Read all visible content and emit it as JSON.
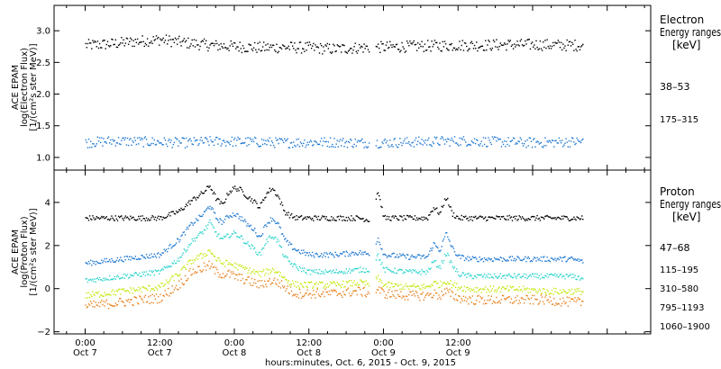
{
  "chart_data": [
    {
      "type": "scatter",
      "panel": "electron",
      "ylabel_lines": [
        "ACE EPAM",
        "log(Electron Flux)",
        "[1/(cm²s ster MeV)]"
      ],
      "ylim": [
        0.8,
        3.4
      ],
      "yticks": [
        1.0,
        1.5,
        2.0,
        2.5,
        3.0
      ],
      "ytick_labels": [
        "1.0",
        "1.5",
        "2.0",
        "2.5",
        "3.0"
      ],
      "legend_title_lines": [
        "Electron",
        "Energy ranges",
        "[keV]"
      ],
      "series": [
        {
          "name": "38–53",
          "color": "#000000",
          "x_hours": [
            0,
            4,
            8,
            12,
            16,
            20,
            24,
            28,
            32,
            36,
            40,
            44,
            48,
            52,
            56,
            60,
            64,
            68,
            72,
            76,
            80
          ],
          "values": [
            2.78,
            2.8,
            2.84,
            2.87,
            2.82,
            2.78,
            2.76,
            2.74,
            2.75,
            2.74,
            2.72,
            2.74,
            2.75,
            2.76,
            2.77,
            2.78,
            2.78,
            2.79,
            2.79,
            2.78,
            2.78
          ],
          "spread": 0.09
        },
        {
          "name": "175–315",
          "color": "#1e78d2",
          "x_hours": [
            0,
            4,
            8,
            12,
            16,
            20,
            24,
            28,
            32,
            36,
            40,
            44,
            48,
            52,
            56,
            60,
            64,
            68,
            72,
            76,
            80
          ],
          "values": [
            1.24,
            1.27,
            1.26,
            1.25,
            1.24,
            1.26,
            1.26,
            1.25,
            1.24,
            1.25,
            1.25,
            1.24,
            1.24,
            1.25,
            1.26,
            1.27,
            1.26,
            1.25,
            1.24,
            1.25,
            1.26
          ],
          "spread": 0.08
        }
      ]
    },
    {
      "type": "scatter",
      "panel": "proton",
      "ylabel_lines": [
        "ACE EPAM",
        "log(Proton Flux)",
        "[1/(cm²s ster MeV)]"
      ],
      "ylim": [
        -2.1,
        5.5
      ],
      "yticks": [
        -2,
        0,
        2,
        4
      ],
      "ytick_labels": [
        "−2",
        "0",
        "2",
        "4"
      ],
      "legend_title_lines": [
        "Proton",
        "Energy ranges",
        "[keV]"
      ],
      "xlabel": "hours:minutes, Oct.  6, 2015 - Oct.  9, 2015",
      "x_range_hours": [
        -5,
        91
      ],
      "x_ticks": [
        {
          "h": 0,
          "time": "0:00",
          "date": "Oct 7"
        },
        {
          "h": 12,
          "time": "12:00",
          "date": "Oct 7"
        },
        {
          "h": 24,
          "time": "0:00",
          "date": "Oct 8"
        },
        {
          "h": 36,
          "time": "12:00",
          "date": "Oct 8"
        },
        {
          "h": 48,
          "time": "0:00",
          "date": "Oct 9"
        },
        {
          "h": 60,
          "time": "12:00",
          "date": "Oct 9"
        }
      ],
      "x_data_end_hours": 80,
      "series": [
        {
          "name": "47–68",
          "color": "#000000",
          "x_hours": [
            0,
            6,
            12,
            15,
            17,
            19,
            20,
            21,
            22,
            23,
            24,
            25,
            26,
            27,
            28,
            29,
            30,
            31,
            32,
            33,
            34,
            35,
            36,
            40,
            44,
            46,
            47,
            48,
            52,
            55,
            56,
            57,
            58,
            59,
            60,
            62,
            66,
            70,
            74,
            78,
            80
          ],
          "values": [
            3.3,
            3.3,
            3.3,
            3.6,
            4.1,
            4.5,
            4.8,
            4.2,
            3.9,
            4.5,
            4.7,
            4.6,
            4.3,
            4.1,
            3.8,
            4.4,
            4.7,
            4.3,
            3.6,
            3.4,
            3.3,
            3.3,
            3.3,
            3.3,
            3.3,
            3.2,
            4.6,
            3.3,
            3.3,
            3.3,
            3.8,
            3.5,
            4.3,
            3.5,
            3.3,
            3.3,
            3.3,
            3.3,
            3.3,
            3.3,
            3.3
          ],
          "spread": 0.12
        },
        {
          "name": "115–195",
          "color": "#1e78d2",
          "x_hours": [
            0,
            6,
            12,
            15,
            17,
            19,
            20,
            21,
            22,
            23,
            24,
            25,
            26,
            27,
            28,
            29,
            30,
            31,
            32,
            33,
            34,
            35,
            36,
            40,
            44,
            46,
            47,
            48,
            52,
            55,
            56,
            57,
            58,
            59,
            60,
            62,
            66,
            70,
            74,
            78,
            80
          ],
          "values": [
            1.2,
            1.4,
            1.6,
            2.3,
            3.0,
            3.5,
            3.9,
            3.3,
            3.1,
            3.4,
            3.5,
            3.3,
            3.0,
            2.8,
            2.4,
            3.0,
            3.3,
            3.0,
            2.3,
            2.0,
            1.8,
            1.7,
            1.6,
            1.6,
            1.7,
            1.6,
            2.4,
            1.6,
            1.5,
            1.5,
            2.1,
            1.8,
            2.6,
            1.9,
            1.5,
            1.4,
            1.4,
            1.4,
            1.4,
            1.4,
            1.3
          ],
          "spread": 0.12
        },
        {
          "name": "310–580",
          "color": "#2ed4cc",
          "x_hours": [
            0,
            6,
            12,
            15,
            17,
            19,
            20,
            21,
            22,
            23,
            24,
            25,
            26,
            27,
            28,
            29,
            30,
            31,
            32,
            33,
            34,
            35,
            36,
            40,
            44,
            46,
            47,
            48,
            52,
            55,
            56,
            57,
            58,
            59,
            60,
            62,
            66,
            70,
            74,
            78,
            80
          ],
          "values": [
            0.4,
            0.6,
            0.8,
            1.4,
            2.2,
            2.7,
            3.1,
            2.6,
            2.3,
            2.5,
            2.6,
            2.4,
            2.1,
            1.9,
            1.6,
            2.2,
            2.5,
            2.2,
            1.5,
            1.2,
            1.0,
            0.9,
            0.8,
            0.8,
            0.9,
            0.9,
            1.6,
            0.9,
            0.8,
            0.8,
            1.3,
            1.0,
            1.7,
            1.1,
            0.7,
            0.6,
            0.6,
            0.6,
            0.6,
            0.6,
            0.5
          ],
          "spread": 0.12
        },
        {
          "name": "795–1193",
          "color": "#c8e614",
          "x_hours": [
            0,
            6,
            12,
            15,
            17,
            19,
            20,
            21,
            22,
            23,
            24,
            25,
            26,
            27,
            28,
            29,
            30,
            31,
            32,
            33,
            34,
            35,
            36,
            40,
            44,
            46,
            47,
            48,
            52,
            55,
            56,
            57,
            58,
            59,
            60,
            62,
            66,
            70,
            74,
            78,
            80
          ],
          "values": [
            -0.3,
            -0.1,
            0.1,
            0.7,
            1.3,
            1.6,
            1.8,
            1.4,
            1.2,
            1.2,
            1.1,
            1.0,
            0.9,
            0.8,
            0.7,
            0.8,
            0.9,
            0.8,
            0.5,
            0.3,
            0.2,
            0.2,
            0.2,
            0.2,
            0.3,
            0.2,
            0.5,
            0.2,
            0.1,
            0.1,
            0.3,
            0.2,
            0.4,
            0.2,
            0.1,
            0.0,
            0.0,
            0.0,
            -0.1,
            -0.1,
            -0.1
          ],
          "spread": 0.15
        },
        {
          "name": "1060–1900",
          "color": "#e8821e",
          "x_hours": [
            0,
            6,
            12,
            15,
            17,
            19,
            20,
            21,
            22,
            23,
            24,
            25,
            26,
            27,
            28,
            29,
            30,
            31,
            32,
            33,
            34,
            35,
            36,
            40,
            44,
            46,
            47,
            48,
            52,
            55,
            56,
            57,
            58,
            59,
            60,
            62,
            66,
            70,
            74,
            78,
            80
          ],
          "values": [
            -0.8,
            -0.6,
            -0.4,
            0.2,
            0.8,
            1.0,
            1.1,
            0.8,
            0.7,
            0.7,
            0.6,
            0.5,
            0.4,
            0.3,
            0.2,
            0.3,
            0.4,
            0.3,
            0.1,
            -0.1,
            -0.2,
            -0.2,
            -0.2,
            -0.2,
            -0.1,
            -0.2,
            0.0,
            -0.2,
            -0.3,
            -0.3,
            -0.2,
            -0.3,
            -0.1,
            -0.3,
            -0.4,
            -0.5,
            -0.5,
            -0.5,
            -0.5,
            -0.6,
            -0.6
          ],
          "spread": 0.22
        }
      ]
    }
  ]
}
